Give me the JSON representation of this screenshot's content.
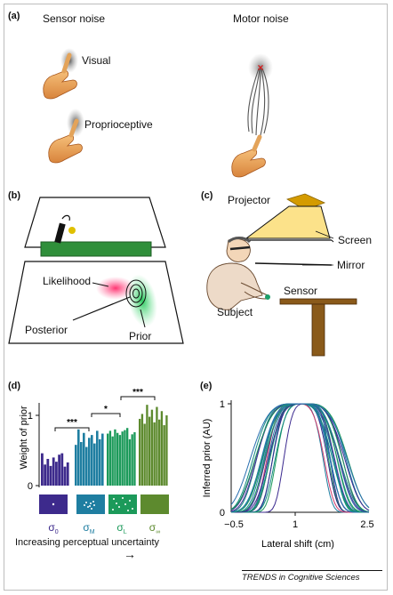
{
  "panel_a": {
    "label": "(a)",
    "sensor_title": "Sensor noise",
    "motor_title": "Motor noise",
    "visual_label": "Visual",
    "proprio_label": "Proprioceptive"
  },
  "panel_b": {
    "label": "(b)",
    "likelihood": "Likelihood",
    "posterior": "Posterior",
    "prior": "Prior"
  },
  "panel_c": {
    "label": "(c)",
    "projector": "Projector",
    "screen": "Screen",
    "mirror": "Mirror",
    "sensor": "Sensor",
    "subject": "Subject"
  },
  "panel_d": {
    "label": "(d)",
    "sig_marks": [
      "***",
      "*",
      "***"
    ],
    "caption": "Increasing perceptual uncertainty",
    "arrow_glyph": "→",
    "conditions": [
      {
        "symbol": "σ",
        "sub": "0",
        "color": "#3d2a8c"
      },
      {
        "symbol": "σ",
        "sub": "M",
        "color": "#1f7ea1"
      },
      {
        "symbol": "σ",
        "sub": "L",
        "color": "#1c9a5a"
      },
      {
        "symbol": "σ",
        "sub": "∞",
        "color": "#5d8a2e"
      }
    ]
  },
  "panel_e": {
    "label": "(e)"
  },
  "footer": {
    "credit": "TRENDS in Cognitive Sciences"
  },
  "chart_data": [
    {
      "type": "bar",
      "ylabel": "Weight of prior",
      "yticks": [
        "0",
        "1"
      ],
      "ylim": [
        0,
        1.25
      ],
      "series": [
        {
          "values": [
            0.46,
            0.3,
            0.38,
            0.28,
            0.4,
            0.34,
            0.44,
            0.46,
            0.27,
            0.33
          ]
        },
        {
          "values": [
            0.58,
            0.8,
            0.62,
            0.75,
            0.55,
            0.68,
            0.72,
            0.6,
            0.78,
            0.66,
            0.74
          ]
        },
        {
          "values": [
            0.74,
            0.78,
            0.7,
            0.8,
            0.75,
            0.72,
            0.77,
            0.79,
            0.82,
            0.66,
            0.73,
            0.76
          ]
        },
        {
          "values": [
            0.95,
            1.02,
            0.88,
            1.15,
            0.98,
            1.08,
            0.9,
            1.12,
            0.94,
            1.06,
            0.86,
            1.0
          ]
        }
      ]
    },
    {
      "type": "line",
      "xlabel": "Lateral shift (cm)",
      "ylabel": "Inferred prior (AU)",
      "xlim": [
        -0.5,
        2.5
      ],
      "ylim": [
        0,
        1
      ],
      "xticks": [
        "−0.5",
        "1",
        "2.5"
      ],
      "yticks": [
        "0",
        "1"
      ],
      "curve_count": 24,
      "curve_widths_cm": [
        0.55,
        0.6,
        0.62,
        0.65,
        0.68,
        0.7,
        0.72,
        0.74,
        0.76,
        0.78,
        0.8,
        0.82,
        0.84,
        0.86,
        0.88,
        0.9,
        0.92,
        0.95,
        0.98,
        1.0,
        1.03,
        1.06,
        1.1,
        1.15
      ],
      "curve_centers_cm": [
        1.15,
        0.95,
        1.05,
        1.0,
        0.9,
        1.1,
        1.0,
        0.98,
        1.04,
        0.93,
        1.07,
        1.0,
        0.96,
        1.02,
        1.12,
        0.88,
        1.0,
        1.05,
        0.95,
        1.08,
        0.92,
        1.0,
        1.03,
        0.97
      ],
      "curve_colors": [
        "#3b2a8f",
        "#1f7ea1",
        "#1c9a5a",
        "#2f2a8a",
        "#d13a6a",
        "#158a82",
        "#3b2a8f",
        "#1f7ea1",
        "#1c9a5a",
        "#2a6fb0",
        "#158a82",
        "#4a2f99",
        "#1f7ea1",
        "#1c9a5a",
        "#3b2a8f",
        "#158a82",
        "#2a6fb0",
        "#1c9a5a",
        "#4a2f99",
        "#1f7ea1",
        "#158a82",
        "#3b2a8f",
        "#1c9a5a",
        "#2a6fb0"
      ]
    }
  ]
}
